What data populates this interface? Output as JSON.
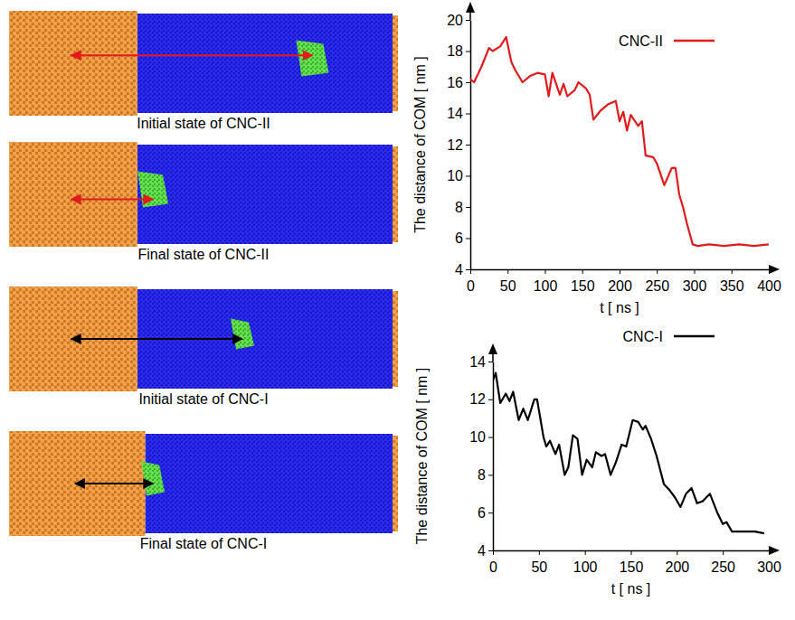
{
  "chart_data": [
    {
      "type": "line",
      "x_label": "t [ ns ]",
      "y_label": "The distance of COM [ nm ]",
      "x": [
        0,
        5,
        10,
        15,
        25,
        30,
        40,
        48,
        55,
        60,
        70,
        80,
        90,
        100,
        105,
        110,
        120,
        125,
        130,
        140,
        145,
        155,
        160,
        165,
        175,
        185,
        195,
        200,
        205,
        210,
        215,
        225,
        230,
        235,
        245,
        250,
        260,
        270,
        275,
        280,
        285,
        290,
        298,
        305,
        320,
        340,
        360,
        380,
        400
      ],
      "series": [
        {
          "name": "CNC-II",
          "color": "#e31a1c",
          "values": [
            16.2,
            16.0,
            16.5,
            17.0,
            18.2,
            18.0,
            18.3,
            18.9,
            17.3,
            16.8,
            16.0,
            16.4,
            16.6,
            16.5,
            15.1,
            16.6,
            15.2,
            15.9,
            15.1,
            15.5,
            16.0,
            15.6,
            15.2,
            13.6,
            14.2,
            14.6,
            14.8,
            13.5,
            14.1,
            12.9,
            13.9,
            13.2,
            13.5,
            11.3,
            11.2,
            10.8,
            9.4,
            10.5,
            10.5,
            8.8,
            8.0,
            7.0,
            5.6,
            5.5,
            5.6,
            5.5,
            5.6,
            5.5,
            5.6
          ]
        }
      ],
      "xlim": [
        0,
        400
      ],
      "xticks": [
        0,
        50,
        100,
        150,
        200,
        250,
        300,
        350,
        400
      ],
      "ylim": [
        4,
        20
      ],
      "yticks": [
        4,
        6,
        8,
        10,
        12,
        14,
        16,
        18,
        20
      ],
      "legend": "top-right",
      "grid": false
    },
    {
      "type": "line",
      "x_label": "t [ ns ]",
      "y_label": "The distance of COM [ nm ]",
      "x": [
        0,
        3,
        8,
        14,
        18,
        22,
        28,
        33,
        38,
        45,
        48,
        55,
        58,
        62,
        68,
        72,
        78,
        82,
        87,
        92,
        97,
        102,
        108,
        112,
        118,
        122,
        128,
        134,
        140,
        145,
        152,
        158,
        163,
        166,
        172,
        178,
        186,
        192,
        198,
        204,
        210,
        216,
        222,
        228,
        236,
        244,
        250,
        254,
        260,
        270,
        285,
        295
      ],
      "series": [
        {
          "name": "CNC-I",
          "color": "#000000",
          "values": [
            13.0,
            13.4,
            11.8,
            12.3,
            11.9,
            12.4,
            10.9,
            11.5,
            10.9,
            12.0,
            12.0,
            10.0,
            9.5,
            9.8,
            9.1,
            9.6,
            8.0,
            8.4,
            10.1,
            9.9,
            8.0,
            8.8,
            8.4,
            9.2,
            9.0,
            9.1,
            8.0,
            8.7,
            9.6,
            9.5,
            10.9,
            10.8,
            10.4,
            10.6,
            9.9,
            9.0,
            7.5,
            7.2,
            6.8,
            6.3,
            7.0,
            7.3,
            6.5,
            6.6,
            7.0,
            6.0,
            5.4,
            5.5,
            5.0,
            5.0,
            5.0,
            4.9
          ]
        }
      ],
      "xlim": [
        0,
        300
      ],
      "xticks": [
        0,
        50,
        100,
        150,
        200,
        250,
        300
      ],
      "ylim": [
        4,
        14
      ],
      "yticks": [
        4,
        6,
        8,
        10,
        12,
        14
      ],
      "legend": "top-right",
      "grid": false
    }
  ],
  "snapshots": [
    {
      "caption": "Initial state of CNC-II"
    },
    {
      "caption": "Final state of CNC-II"
    },
    {
      "caption": "Initial state of CNC-I"
    },
    {
      "caption": "Final state of CNC-I"
    }
  ]
}
